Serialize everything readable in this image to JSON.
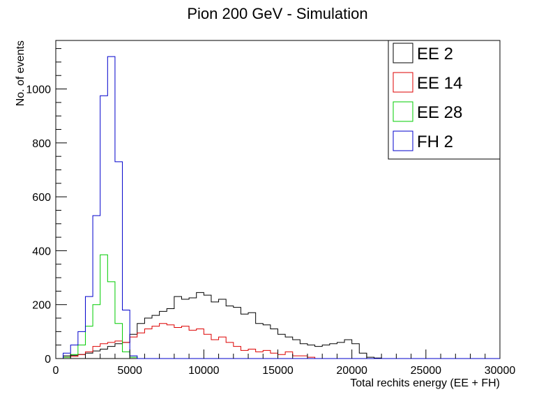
{
  "chart_data": {
    "type": "histogram-step",
    "title": "Pion 200 GeV - Simulation",
    "xlabel": "Total rechits energy (EE + FH)",
    "ylabel": "No. of events",
    "xlim": [
      0,
      30000
    ],
    "ylim": [
      0,
      1180
    ],
    "bin_width": 500,
    "x_ticks": [
      "0",
      "5000",
      "10000",
      "15000",
      "20000",
      "25000",
      "30000"
    ],
    "y_ticks": [
      "0",
      "200",
      "400",
      "600",
      "800",
      "1000"
    ],
    "legend_position": "top-right",
    "series": [
      {
        "name": "EE 2",
        "color": "#000000",
        "bins": [
          [
            0,
            0
          ],
          [
            500,
            10
          ],
          [
            1000,
            12
          ],
          [
            1500,
            15
          ],
          [
            2000,
            20
          ],
          [
            2500,
            28
          ],
          [
            3000,
            35
          ],
          [
            3500,
            45
          ],
          [
            4000,
            55
          ],
          [
            4500,
            60
          ],
          [
            5000,
            90
          ],
          [
            5500,
            130
          ],
          [
            6000,
            150
          ],
          [
            6500,
            160
          ],
          [
            7000,
            175
          ],
          [
            7500,
            185
          ],
          [
            8000,
            230
          ],
          [
            8500,
            220
          ],
          [
            9000,
            225
          ],
          [
            9500,
            245
          ],
          [
            10000,
            235
          ],
          [
            10500,
            210
          ],
          [
            11000,
            220
          ],
          [
            11500,
            195
          ],
          [
            12000,
            190
          ],
          [
            12500,
            165
          ],
          [
            13000,
            170
          ],
          [
            13500,
            130
          ],
          [
            14000,
            125
          ],
          [
            14500,
            110
          ],
          [
            15000,
            90
          ],
          [
            15500,
            80
          ],
          [
            16000,
            70
          ],
          [
            16500,
            55
          ],
          [
            17000,
            50
          ],
          [
            17500,
            45
          ],
          [
            18000,
            50
          ],
          [
            18500,
            55
          ],
          [
            19000,
            60
          ],
          [
            19500,
            70
          ],
          [
            20000,
            55
          ],
          [
            20500,
            20
          ],
          [
            21000,
            5
          ],
          [
            21500,
            2
          ],
          [
            22000,
            0
          ]
        ]
      },
      {
        "name": "EE 14",
        "color": "#dd0000",
        "bins": [
          [
            0,
            0
          ],
          [
            500,
            5
          ],
          [
            1000,
            8
          ],
          [
            1500,
            15
          ],
          [
            2000,
            25
          ],
          [
            2500,
            45
          ],
          [
            3000,
            55
          ],
          [
            3500,
            60
          ],
          [
            4000,
            65
          ],
          [
            4500,
            60
          ],
          [
            5000,
            80
          ],
          [
            5500,
            95
          ],
          [
            6000,
            110
          ],
          [
            6500,
            120
          ],
          [
            7000,
            130
          ],
          [
            7500,
            125
          ],
          [
            8000,
            115
          ],
          [
            8500,
            120
          ],
          [
            9000,
            105
          ],
          [
            9500,
            110
          ],
          [
            10000,
            90
          ],
          [
            10500,
            70
          ],
          [
            11000,
            80
          ],
          [
            11500,
            60
          ],
          [
            12000,
            45
          ],
          [
            12500,
            30
          ],
          [
            13000,
            35
          ],
          [
            13500,
            25
          ],
          [
            14000,
            30
          ],
          [
            14500,
            20
          ],
          [
            15000,
            15
          ],
          [
            15500,
            25
          ],
          [
            16000,
            10
          ],
          [
            16500,
            10
          ],
          [
            17000,
            5
          ],
          [
            17500,
            0
          ]
        ]
      },
      {
        "name": "EE 28",
        "color": "#00cc00",
        "bins": [
          [
            0,
            0
          ],
          [
            500,
            5
          ],
          [
            1000,
            15
          ],
          [
            1500,
            50
          ],
          [
            2000,
            120
          ],
          [
            2500,
            200
          ],
          [
            3000,
            385
          ],
          [
            3500,
            285
          ],
          [
            4000,
            130
          ],
          [
            4500,
            25
          ],
          [
            5000,
            5
          ],
          [
            5500,
            0
          ]
        ]
      },
      {
        "name": "FH 2",
        "color": "#0000cc",
        "bins": [
          [
            0,
            0
          ],
          [
            500,
            20
          ],
          [
            1000,
            50
          ],
          [
            1500,
            100
          ],
          [
            2000,
            230
          ],
          [
            2500,
            530
          ],
          [
            3000,
            975
          ],
          [
            3500,
            1120
          ],
          [
            4000,
            730
          ],
          [
            4500,
            180
          ],
          [
            5000,
            10
          ],
          [
            5500,
            0
          ]
        ]
      }
    ]
  }
}
